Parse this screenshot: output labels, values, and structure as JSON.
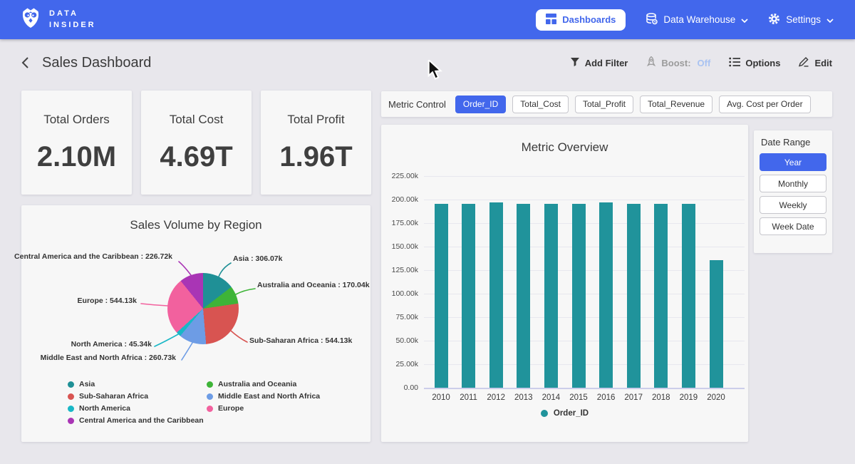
{
  "navbar": {
    "brand_line1": "DATA",
    "brand_line2": "INSIDER",
    "dashboards_label": "Dashboards",
    "data_warehouse_label": "Data Warehouse",
    "settings_label": "Settings"
  },
  "header": {
    "title": "Sales Dashboard",
    "add_filter_label": "Add Filter",
    "boost_label": "Boost:",
    "boost_state": "Off",
    "options_label": "Options",
    "edit_label": "Edit"
  },
  "kpis": [
    {
      "label": "Total Orders",
      "value": "2.10M"
    },
    {
      "label": "Total Cost",
      "value": "4.69T"
    },
    {
      "label": "Total Profit",
      "value": "1.96T"
    }
  ],
  "metric_control": {
    "label": "Metric Control",
    "options": [
      {
        "label": "Order_ID",
        "selected": true
      },
      {
        "label": "Total_Cost",
        "selected": false
      },
      {
        "label": "Total_Profit",
        "selected": false
      },
      {
        "label": "Total_Revenue",
        "selected": false
      },
      {
        "label": "Avg. Cost per Order",
        "selected": false
      }
    ]
  },
  "date_range": {
    "label": "Date Range",
    "options": [
      {
        "label": "Year",
        "selected": true
      },
      {
        "label": "Monthly",
        "selected": false
      },
      {
        "label": "Weekly",
        "selected": false
      },
      {
        "label": "Week Date",
        "selected": false
      }
    ]
  },
  "icons": {
    "logo": "owl-icon",
    "nav": [
      "dashboards-icon",
      "database-icon",
      "gear-icon",
      "chevron-down-icon"
    ],
    "header": [
      "back-icon",
      "filter-icon",
      "rocket-icon",
      "list-icon",
      "pencil-icon"
    ]
  },
  "colors": {
    "accent_blue": "#4267ec",
    "bar_teal": "#20939b",
    "page_bg": "#e8e7ec",
    "card_bg": "#f7f7f7"
  },
  "chart_data": [
    {
      "type": "pie",
      "title": "Sales Volume by Region",
      "unit": "k",
      "slices": [
        {
          "label": "Asia",
          "value": 306.07,
          "display": "Asia : 306.07k",
          "color": "#1f9096"
        },
        {
          "label": "Australia and Oceania",
          "value": 170.04,
          "display": "Australia and Oceania : 170.04k",
          "color": "#3eb438"
        },
        {
          "label": "Sub-Saharan Africa",
          "value": 544.13,
          "display": "Sub-Saharan Africa : 544.13k",
          "color": "#d85451"
        },
        {
          "label": "Middle East and North Africa",
          "value": 260.73,
          "display": "Middle East and North Africa : 260.73k",
          "color": "#6d9ce5"
        },
        {
          "label": "North America",
          "value": 45.34,
          "display": "North America : 45.34k",
          "color": "#19b7c6"
        },
        {
          "label": "Europe",
          "value": 544.13,
          "display": "Europe : 544.13k",
          "color": "#f2619e"
        },
        {
          "label": "Central America and the Caribbean",
          "value": 226.72,
          "display": "Central America and the Caribbean : 226.72k",
          "color": "#a935b5"
        }
      ],
      "legend_columns": [
        [
          0,
          2,
          4,
          6
        ],
        [
          1,
          3,
          5
        ]
      ]
    },
    {
      "type": "bar",
      "title": "Metric Overview",
      "legend": "Order_ID",
      "bar_color": "#20939b",
      "categories": [
        "2010",
        "2011",
        "2012",
        "2013",
        "2014",
        "2015",
        "2016",
        "2017",
        "2018",
        "2019",
        "2020"
      ],
      "values_thousands": [
        195.7,
        195.6,
        197,
        195.5,
        195.4,
        195.6,
        197.2,
        195.7,
        195.5,
        195.6,
        135.6
      ],
      "ylim_thousands": [
        0,
        225
      ],
      "y_tick_labels": [
        "225.00k",
        "200.00k",
        "175.00k",
        "150.00k",
        "125.00k",
        "100.00k",
        "75.00k",
        "50.00k",
        "25.00k",
        "0.00"
      ]
    }
  ]
}
